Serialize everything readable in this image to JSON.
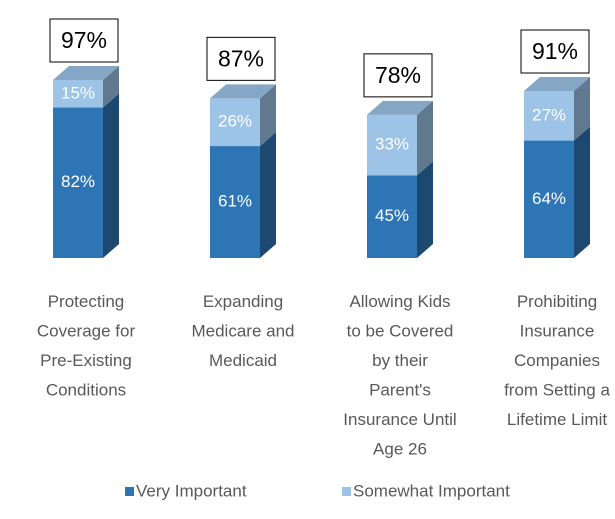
{
  "chart_data": {
    "type": "bar3d-stacked",
    "categories": [
      "Protecting\nCoverage for\nPre-Existing\nConditions",
      "Expanding\nMedicare and\nMedicaid",
      "Allowing Kids\nto be Covered\nby their\nParent's\nInsurance Until\nAge 26",
      "Prohibiting\nInsurance\nCompanies\nfrom Setting a\nLifetime Limit"
    ],
    "series": [
      {
        "name": "Very Important",
        "color": "#2e75b6",
        "values": [
          82,
          61,
          45,
          64
        ],
        "value_labels": [
          "82%",
          "61%",
          "45%",
          "64%"
        ]
      },
      {
        "name": "Somewhat Important",
        "color": "#9dc3e6",
        "values": [
          15,
          26,
          33,
          27
        ],
        "value_labels": [
          "15%",
          "26%",
          "33%",
          "27%"
        ]
      }
    ],
    "totals": {
      "values": [
        97,
        87,
        78,
        91
      ],
      "value_labels": [
        "97%",
        "87%",
        "78%",
        "91%"
      ]
    },
    "legend": "bottom"
  }
}
